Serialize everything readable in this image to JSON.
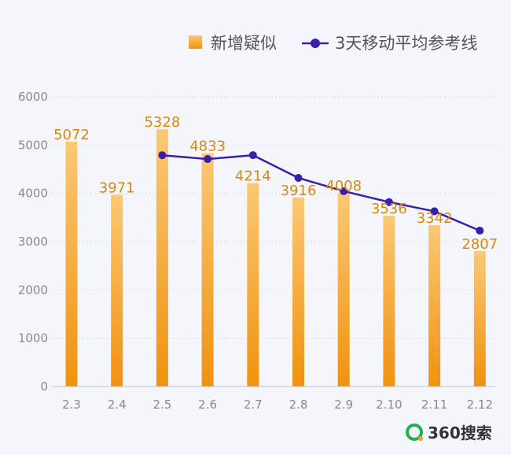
{
  "chart_data": {
    "type": "bar",
    "categories": [
      "2.3",
      "2.4",
      "2.5",
      "2.6",
      "2.7",
      "2.8",
      "2.9",
      "2.10",
      "2.11",
      "2.12"
    ],
    "series": [
      {
        "name": "新增疑似",
        "type": "bar",
        "values": [
          5072,
          3971,
          5328,
          4833,
          4214,
          3916,
          4008,
          3536,
          3342,
          2807
        ]
      },
      {
        "name": "3天移动平均参考线",
        "type": "line",
        "values": [
          null,
          null,
          4790,
          4711,
          4792,
          4321,
          4046,
          3820,
          3629,
          3228
        ]
      }
    ],
    "data_labels": [
      "5072",
      "3971",
      "5328",
      "4833",
      "4214",
      "3916",
      "4008",
      "3536",
      "3342",
      "2807"
    ],
    "ylim": [
      0,
      6000
    ],
    "yticks": [
      "0",
      "1000",
      "2000",
      "3000",
      "4000",
      "5000",
      "6000"
    ],
    "grid": true,
    "legend_position": "top-right",
    "colors": {
      "bar_top": "#fbc874",
      "bar_bottom": "#f0920f",
      "line": "#3a1fa8",
      "label": "#d38a12",
      "grid": "#d9dbe3",
      "axis": "#bfc2cc"
    }
  },
  "legend": {
    "bar_label": "新增疑似",
    "line_label": "3天移动平均参考线"
  },
  "brand": {
    "name": "360搜索",
    "logo_icon": "360-search-logo-icon"
  }
}
